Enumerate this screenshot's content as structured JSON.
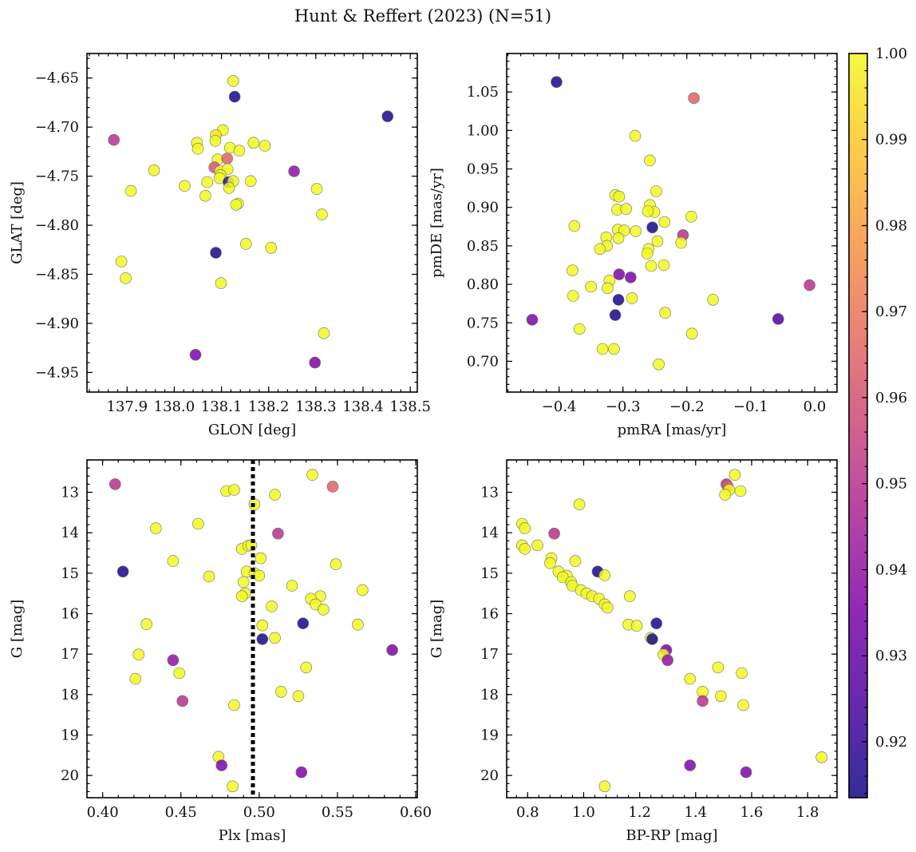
{
  "chart_data": {
    "type": "scatter",
    "title": "Hunt & Reffert (2023) (N=51)",
    "colorbar": {
      "min": 0.9135,
      "max": 1.0,
      "colormap": "plasma",
      "ticks": [
        "0.92",
        "0.93",
        "0.94",
        "0.95",
        "0.96",
        "0.97",
        "0.98",
        "0.99",
        "1.00"
      ],
      "tick_values": [
        0.92,
        0.93,
        0.94,
        0.95,
        0.96,
        0.97,
        0.98,
        0.99,
        1.0
      ]
    },
    "panels": [
      {
        "id": "glon-glat",
        "xlabel": "GLON [deg]",
        "ylabel": "GLAT [deg]",
        "xlim": [
          137.815,
          138.515
        ],
        "ylim": [
          -4.97,
          -4.625
        ],
        "xticks": [
          "137.9",
          "138.0",
          "138.1",
          "138.2",
          "138.3",
          "138.4",
          "138.5"
        ],
        "xtick_values": [
          137.9,
          138.0,
          138.1,
          138.2,
          138.3,
          138.4,
          138.5
        ],
        "yticks": [
          "−4.65",
          "−4.70",
          "−4.75",
          "−4.80",
          "−4.85",
          "−4.90",
          "−4.95"
        ],
        "ytick_values": [
          -4.65,
          -4.7,
          -4.75,
          -4.8,
          -4.85,
          -4.9,
          -4.95
        ],
        "inverted_y": false,
        "vline": null,
        "points": [
          [
            138.125,
            -4.653,
            1.0
          ],
          [
            138.128,
            -4.669,
            0.915
          ],
          [
            138.452,
            -4.689,
            0.915
          ],
          [
            137.872,
            -4.713,
            0.95
          ],
          [
            138.103,
            -4.703,
            1.0
          ],
          [
            138.088,
            -4.708,
            0.995
          ],
          [
            138.087,
            -4.714,
            1.0
          ],
          [
            138.048,
            -4.716,
            1.0
          ],
          [
            138.05,
            -4.722,
            1.0
          ],
          [
            138.168,
            -4.716,
            1.0
          ],
          [
            138.192,
            -4.719,
            1.0
          ],
          [
            138.118,
            -4.721,
            1.0
          ],
          [
            138.138,
            -4.724,
            1.0
          ],
          [
            137.957,
            -4.744,
            1.0
          ],
          [
            138.092,
            -4.733,
            1.0
          ],
          [
            138.112,
            -4.732,
            0.965
          ],
          [
            138.085,
            -4.741,
            0.96
          ],
          [
            138.097,
            -4.745,
            1.0
          ],
          [
            138.113,
            -4.743,
            1.0
          ],
          [
            138.254,
            -4.745,
            0.94
          ],
          [
            138.098,
            -4.749,
            1.0
          ],
          [
            138.096,
            -4.752,
            1.0
          ],
          [
            138.115,
            -4.756,
            0.92
          ],
          [
            138.125,
            -4.755,
            1.0
          ],
          [
            138.162,
            -4.755,
            1.0
          ],
          [
            138.022,
            -4.76,
            1.0
          ],
          [
            138.07,
            -4.756,
            1.0
          ],
          [
            138.116,
            -4.762,
            1.0
          ],
          [
            137.908,
            -4.765,
            1.0
          ],
          [
            138.302,
            -4.763,
            1.0
          ],
          [
            138.066,
            -4.77,
            1.0
          ],
          [
            138.135,
            -4.778,
            1.0
          ],
          [
            138.131,
            -4.779,
            1.0
          ],
          [
            138.313,
            -4.789,
            1.0
          ],
          [
            138.152,
            -4.819,
            1.0
          ],
          [
            138.205,
            -4.823,
            1.0
          ],
          [
            138.088,
            -4.828,
            0.915
          ],
          [
            137.888,
            -4.837,
            1.0
          ],
          [
            137.897,
            -4.854,
            1.0
          ],
          [
            138.099,
            -4.859,
            1.0
          ],
          [
            138.317,
            -4.91,
            1.0
          ],
          [
            138.045,
            -4.932,
            0.935
          ],
          [
            138.298,
            -4.94,
            0.935
          ]
        ]
      },
      {
        "id": "pm",
        "xlabel": "pmRA [mas/yr]",
        "ylabel": "pmDE [mas/yr]",
        "xlim": [
          -0.482,
          0.035
        ],
        "ylim": [
          0.66,
          1.1
        ],
        "xticks": [
          "−0.4",
          "−0.3",
          "−0.2",
          "−0.1",
          "0.0"
        ],
        "xtick_values": [
          -0.4,
          -0.3,
          -0.2,
          -0.1,
          0.0
        ],
        "yticks": [
          "0.70",
          "0.75",
          "0.80",
          "0.85",
          "0.90",
          "0.95",
          "1.00",
          "1.05"
        ],
        "ytick_values": [
          0.7,
          0.75,
          0.8,
          0.85,
          0.9,
          0.95,
          1.0,
          1.05
        ],
        "inverted_y": false,
        "vline": null,
        "points": [
          [
            -0.404,
            1.063,
            0.915
          ],
          [
            -0.189,
            1.042,
            0.965
          ],
          [
            -0.281,
            0.993,
            1.0
          ],
          [
            -0.258,
            0.961,
            1.0
          ],
          [
            -0.312,
            0.916,
            1.0
          ],
          [
            -0.306,
            0.914,
            1.0
          ],
          [
            -0.248,
            0.921,
            1.0
          ],
          [
            -0.309,
            0.897,
            1.0
          ],
          [
            -0.295,
            0.898,
            1.0
          ],
          [
            -0.258,
            0.903,
            1.0
          ],
          [
            -0.251,
            0.894,
            1.0
          ],
          [
            -0.261,
            0.895,
            1.0
          ],
          [
            -0.193,
            0.888,
            1.0
          ],
          [
            -0.235,
            0.881,
            1.0
          ],
          [
            -0.376,
            0.876,
            1.0
          ],
          [
            -0.254,
            0.874,
            0.915
          ],
          [
            -0.308,
            0.871,
            1.0
          ],
          [
            -0.298,
            0.87,
            1.0
          ],
          [
            -0.28,
            0.869,
            1.0
          ],
          [
            -0.206,
            0.864,
            0.95
          ],
          [
            -0.326,
            0.861,
            1.0
          ],
          [
            -0.307,
            0.86,
            1.0
          ],
          [
            -0.246,
            0.856,
            1.0
          ],
          [
            -0.209,
            0.854,
            1.0
          ],
          [
            -0.325,
            0.85,
            1.0
          ],
          [
            -0.336,
            0.846,
            1.0
          ],
          [
            -0.26,
            0.846,
            1.0
          ],
          [
            -0.262,
            0.84,
            1.0
          ],
          [
            -0.236,
            0.825,
            1.0
          ],
          [
            -0.256,
            0.824,
            1.0
          ],
          [
            -0.379,
            0.818,
            1.0
          ],
          [
            -0.306,
            0.813,
            0.935
          ],
          [
            -0.288,
            0.809,
            0.935
          ],
          [
            -0.321,
            0.805,
            1.0
          ],
          [
            -0.008,
            0.799,
            0.95
          ],
          [
            -0.35,
            0.797,
            1.0
          ],
          [
            -0.324,
            0.795,
            1.0
          ],
          [
            -0.378,
            0.785,
            1.0
          ],
          [
            -0.286,
            0.782,
            1.0
          ],
          [
            -0.307,
            0.78,
            0.915
          ],
          [
            -0.159,
            0.78,
            1.0
          ],
          [
            -0.234,
            0.763,
            1.0
          ],
          [
            -0.312,
            0.76,
            0.915
          ],
          [
            -0.442,
            0.754,
            0.935
          ],
          [
            -0.057,
            0.755,
            0.925
          ],
          [
            -0.368,
            0.742,
            1.0
          ],
          [
            -0.192,
            0.736,
            1.0
          ],
          [
            -0.332,
            0.716,
            1.0
          ],
          [
            -0.314,
            0.716,
            1.0
          ],
          [
            -0.244,
            0.696,
            1.0
          ]
        ]
      },
      {
        "id": "plx-g",
        "xlabel": "Plx [mas]",
        "ylabel": "G [mag]",
        "xlim": [
          0.39,
          0.601
        ],
        "ylim": [
          12.2,
          20.55
        ],
        "xticks": [
          "0.40",
          "0.45",
          "0.50",
          "0.55",
          "0.60"
        ],
        "xtick_values": [
          0.4,
          0.45,
          0.5,
          0.55,
          0.6
        ],
        "yticks": [
          "13",
          "14",
          "15",
          "16",
          "17",
          "18",
          "19",
          "20"
        ],
        "ytick_values": [
          13,
          14,
          15,
          16,
          17,
          18,
          19,
          20
        ],
        "inverted_y": true,
        "vline": 0.496,
        "points": [
          [
            0.408,
            12.8,
            0.95
          ],
          [
            0.534,
            12.57,
            1.0
          ],
          [
            0.547,
            12.86,
            0.965
          ],
          [
            0.479,
            12.97,
            1.0
          ],
          [
            0.484,
            12.94,
            1.0
          ],
          [
            0.51,
            13.06,
            1.0
          ],
          [
            0.497,
            13.3,
            1.0
          ],
          [
            0.461,
            13.78,
            1.0
          ],
          [
            0.434,
            13.89,
            1.0
          ],
          [
            0.512,
            14.02,
            0.95
          ],
          [
            0.489,
            14.4,
            1.0
          ],
          [
            0.493,
            14.32,
            1.0
          ],
          [
            0.495,
            14.31,
            1.0
          ],
          [
            0.445,
            14.7,
            1.0
          ],
          [
            0.501,
            14.63,
            1.0
          ],
          [
            0.549,
            14.78,
            1.0
          ],
          [
            0.413,
            14.96,
            0.915
          ],
          [
            0.492,
            14.96,
            1.0
          ],
          [
            0.497,
            15.0,
            1.0
          ],
          [
            0.5,
            15.06,
            1.0
          ],
          [
            0.468,
            15.08,
            1.0
          ],
          [
            0.49,
            15.22,
            1.0
          ],
          [
            0.521,
            15.31,
            1.0
          ],
          [
            0.566,
            15.42,
            1.0
          ],
          [
            0.491,
            15.5,
            1.0
          ],
          [
            0.489,
            15.57,
            1.0
          ],
          [
            0.539,
            15.57,
            1.0
          ],
          [
            0.533,
            15.63,
            1.0
          ],
          [
            0.536,
            15.77,
            1.0
          ],
          [
            0.508,
            15.82,
            1.0
          ],
          [
            0.541,
            15.9,
            1.0
          ],
          [
            0.528,
            16.24,
            0.915
          ],
          [
            0.428,
            16.26,
            1.0
          ],
          [
            0.502,
            16.29,
            1.0
          ],
          [
            0.563,
            16.27,
            1.0
          ],
          [
            0.51,
            16.6,
            1.0
          ],
          [
            0.502,
            16.63,
            0.915
          ],
          [
            0.585,
            16.9,
            0.935
          ],
          [
            0.423,
            17.01,
            1.0
          ],
          [
            0.445,
            17.15,
            0.94
          ],
          [
            0.53,
            17.33,
            1.0
          ],
          [
            0.449,
            17.47,
            1.0
          ],
          [
            0.421,
            17.61,
            1.0
          ],
          [
            0.514,
            17.93,
            1.0
          ],
          [
            0.525,
            18.04,
            1.0
          ],
          [
            0.451,
            18.16,
            0.95
          ],
          [
            0.484,
            18.26,
            1.0
          ],
          [
            0.474,
            19.54,
            1.0
          ],
          [
            0.476,
            19.75,
            0.935
          ],
          [
            0.527,
            19.92,
            0.935
          ],
          [
            0.483,
            20.27,
            1.0
          ]
        ]
      },
      {
        "id": "bprp-g",
        "xlabel": "BP-RP [mag]",
        "ylabel": "G [mag]",
        "xlim": [
          0.725,
          1.905
        ],
        "ylim": [
          12.2,
          20.55
        ],
        "xticks": [
          "0.8",
          "1.0",
          "1.2",
          "1.4",
          "1.6",
          "1.8"
        ],
        "xtick_values": [
          0.8,
          1.0,
          1.2,
          1.4,
          1.6,
          1.8
        ],
        "yticks": [
          "13",
          "14",
          "15",
          "16",
          "17",
          "18",
          "19",
          "20"
        ],
        "ytick_values": [
          13,
          14,
          15,
          16,
          17,
          18,
          19,
          20
        ],
        "inverted_y": true,
        "vline": null,
        "points": [
          [
            1.54,
            12.57,
            1.0
          ],
          [
            1.51,
            12.8,
            0.95
          ],
          [
            1.515,
            12.86,
            0.965
          ],
          [
            1.56,
            12.97,
            1.0
          ],
          [
            1.52,
            12.94,
            1.0
          ],
          [
            1.505,
            13.06,
            1.0
          ],
          [
            0.985,
            13.3,
            1.0
          ],
          [
            0.78,
            13.78,
            1.0
          ],
          [
            0.79,
            13.89,
            1.0
          ],
          [
            0.895,
            14.02,
            0.95
          ],
          [
            0.78,
            14.31,
            1.0
          ],
          [
            0.835,
            14.31,
            1.0
          ],
          [
            0.79,
            14.4,
            1.0
          ],
          [
            0.885,
            14.63,
            1.0
          ],
          [
            0.97,
            14.7,
            1.0
          ],
          [
            0.88,
            14.75,
            1.0
          ],
          [
            0.91,
            14.96,
            1.0
          ],
          [
            1.05,
            14.96,
            0.915
          ],
          [
            1.075,
            15.05,
            1.0
          ],
          [
            0.94,
            15.06,
            1.0
          ],
          [
            0.925,
            15.1,
            1.0
          ],
          [
            0.955,
            15.22,
            1.0
          ],
          [
            0.96,
            15.31,
            1.0
          ],
          [
            0.99,
            15.42,
            1.0
          ],
          [
            1.01,
            15.5,
            1.0
          ],
          [
            1.03,
            15.57,
            1.0
          ],
          [
            1.165,
            15.57,
            1.0
          ],
          [
            1.055,
            15.63,
            1.0
          ],
          [
            1.075,
            15.77,
            1.0
          ],
          [
            1.085,
            15.85,
            1.0
          ],
          [
            1.16,
            16.27,
            1.0
          ],
          [
            1.19,
            16.3,
            1.0
          ],
          [
            1.26,
            16.24,
            0.915
          ],
          [
            1.24,
            16.6,
            1.0
          ],
          [
            1.245,
            16.63,
            0.915
          ],
          [
            1.295,
            16.9,
            0.935
          ],
          [
            1.285,
            17.01,
            1.0
          ],
          [
            1.3,
            17.15,
            0.94
          ],
          [
            1.48,
            17.33,
            1.0
          ],
          [
            1.565,
            17.47,
            1.0
          ],
          [
            1.38,
            17.61,
            1.0
          ],
          [
            1.425,
            17.93,
            1.0
          ],
          [
            1.49,
            18.04,
            1.0
          ],
          [
            1.425,
            18.16,
            0.95
          ],
          [
            1.57,
            18.26,
            1.0
          ],
          [
            1.85,
            19.55,
            1.0
          ],
          [
            1.38,
            19.75,
            0.935
          ],
          [
            1.58,
            19.92,
            0.935
          ],
          [
            1.075,
            20.27,
            1.0
          ]
        ]
      }
    ]
  }
}
